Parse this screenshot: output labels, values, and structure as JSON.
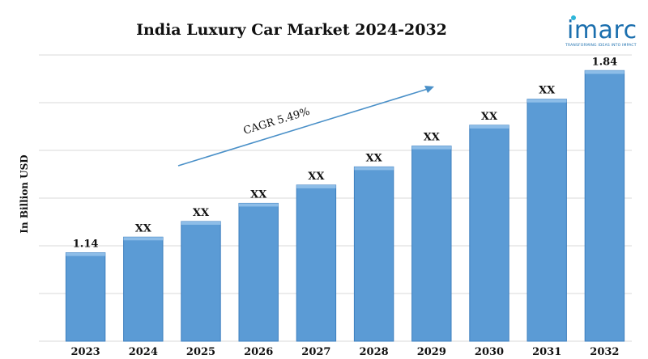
{
  "title": "India Luxury Car Market 2024-2032",
  "logo": {
    "word": "imarc",
    "tagline": "TRANSFORMING IDEAS INTO IMPACT"
  },
  "annotation": {
    "cagr_label": "CAGR 5.49%"
  },
  "colors": {
    "bar": "#5b9bd5",
    "bar_top": "#8dbde8",
    "bar_edge": "#3e7fbf",
    "grid": "#d9d9d9",
    "arrow": "#4a90c8"
  },
  "chart_data": {
    "type": "bar",
    "title": "India Luxury Car Market 2024-2032",
    "xlabel": "",
    "ylabel": "In Billion USD",
    "categories": [
      "2023",
      "2024",
      "2025",
      "2026",
      "2027",
      "2028",
      "2029",
      "2030",
      "2031",
      "2032"
    ],
    "values": [
      1.14,
      1.2,
      1.26,
      1.33,
      1.4,
      1.47,
      1.55,
      1.63,
      1.73,
      1.84
    ],
    "data_labels": [
      "1.14",
      "XX",
      "XX",
      "XX",
      "XX",
      "XX",
      "XX",
      "XX",
      "XX",
      "1.84"
    ],
    "ylim": [
      0.8,
      1.9
    ],
    "grid": true,
    "legend": "none"
  }
}
